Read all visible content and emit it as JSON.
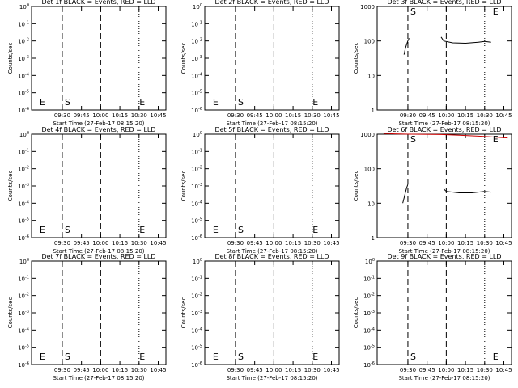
{
  "figure": {
    "background": "#ffffff",
    "line_color": "#000000",
    "lld_color": "#cc0000"
  },
  "chart_data": [
    {
      "type": "line",
      "panel": 1,
      "title": "Det 1f BLACK = Events, RED = LLD",
      "xlabel": "Start Time (27-Feb-17 08:15:20)",
      "ylabel": "Counts/sec",
      "x_ticks": [
        "09:30",
        "09:45",
        "10:00",
        "10:15",
        "10:30",
        "10:45"
      ],
      "y_ticks": [
        "10^0",
        "10^-1",
        "10^-2",
        "10^-3",
        "10^-4",
        "10^-5",
        "10^-6"
      ],
      "y_scale": "log",
      "ylim": [
        "10^-6",
        "10^0"
      ],
      "markers": [
        {
          "label": "E",
          "at": "09:11"
        },
        {
          "label": "S",
          "at": "09:30"
        },
        {
          "label": "E",
          "at": "10:29"
        }
      ],
      "series": []
    },
    {
      "type": "line",
      "panel": 2,
      "title": "Det 2f BLACK = Events, RED = LLD",
      "xlabel": "Start Time (27-Feb-17 08:15:20)",
      "ylabel": "Counts/sec",
      "x_ticks": [
        "09:30",
        "09:45",
        "10:00",
        "10:15",
        "10:30",
        "10:45"
      ],
      "y_ticks": [
        "10^0",
        "10^-1",
        "10^-2",
        "10^-3",
        "10^-4",
        "10^-5",
        "10^-6"
      ],
      "y_scale": "log",
      "ylim": [
        "10^-6",
        "10^0"
      ],
      "markers": [
        {
          "label": "E",
          "at": "09:11"
        },
        {
          "label": "S",
          "at": "09:30"
        },
        {
          "label": "E",
          "at": "10:29"
        }
      ],
      "series": []
    },
    {
      "type": "line",
      "panel": 3,
      "title": "Det 3f BLACK = Events, RED = LLD",
      "xlabel": "Start Time (27-Feb-17 08:15:20)",
      "ylabel": "Counts/sec",
      "x_ticks": [
        "09:30",
        "09:45",
        "10:00",
        "10:15",
        "10:30",
        "10:45"
      ],
      "y_ticks": [
        "1000",
        "100",
        "10",
        "1"
      ],
      "y_scale": "log",
      "ylim": [
        1,
        1000
      ],
      "markers": [
        {
          "label": "S",
          "at": "09:30"
        },
        {
          "label": "E",
          "at": "10:35"
        }
      ],
      "series": [
        {
          "color": "#000000",
          "x": [
            "09:27",
            "09:28",
            "09:29",
            "09:30",
            "09:31"
          ],
          "y": [
            40,
            60,
            80,
            100,
            120
          ]
        },
        {
          "color": "#000000",
          "x": [
            "09:56",
            "09:58",
            "10:05",
            "10:15",
            "10:25",
            "10:30",
            "10:35"
          ],
          "y": [
            130,
            100,
            88,
            86,
            92,
            97,
            92
          ]
        }
      ]
    },
    {
      "type": "line",
      "panel": 4,
      "title": "Det 4f BLACK = Events, RED = LLD",
      "xlabel": "Start Time (27-Feb-17 08:15:20)",
      "ylabel": "Counts/sec",
      "x_ticks": [
        "09:30",
        "09:45",
        "10:00",
        "10:15",
        "10:30",
        "10:45"
      ],
      "y_ticks": [
        "10^0",
        "10^-1",
        "10^-2",
        "10^-3",
        "10^-4",
        "10^-5",
        "10^-6"
      ],
      "y_scale": "log",
      "ylim": [
        "10^-6",
        "10^0"
      ],
      "markers": [
        {
          "label": "E",
          "at": "09:11"
        },
        {
          "label": "S",
          "at": "09:30"
        },
        {
          "label": "E",
          "at": "10:29"
        }
      ],
      "series": []
    },
    {
      "type": "line",
      "panel": 5,
      "title": "Det 5f BLACK = Events, RED = LLD",
      "xlabel": "Start Time (27-Feb-17 08:15:20)",
      "ylabel": "Counts/sec",
      "x_ticks": [
        "09:30",
        "09:45",
        "10:00",
        "10:15",
        "10:30",
        "10:45"
      ],
      "y_ticks": [
        "10^0",
        "10^-1",
        "10^-2",
        "10^-3",
        "10^-4",
        "10^-5",
        "10^-6"
      ],
      "y_scale": "log",
      "ylim": [
        "10^-6",
        "10^0"
      ],
      "markers": [
        {
          "label": "E",
          "at": "09:11"
        },
        {
          "label": "S",
          "at": "09:30"
        },
        {
          "label": "E",
          "at": "10:29"
        }
      ],
      "series": []
    },
    {
      "type": "line",
      "panel": 6,
      "title": "Det 6f BLACK = Events, RED = LLD",
      "xlabel": "Start Time (27-Feb-17 08:15:20)",
      "ylabel": "Counts/sec",
      "x_ticks": [
        "09:30",
        "09:45",
        "10:00",
        "10:15",
        "10:30",
        "10:45"
      ],
      "y_ticks": [
        "1000",
        "100",
        "10",
        "1"
      ],
      "y_scale": "log",
      "ylim": [
        1,
        1000
      ],
      "markers": [
        {
          "label": "S",
          "at": "09:30"
        },
        {
          "label": "E",
          "at": "10:35"
        }
      ],
      "series": [
        {
          "color": "#cc0000",
          "x": [
            "09:11",
            "09:20",
            "09:30",
            "09:56",
            "10:10",
            "10:25",
            "10:35",
            "10:48"
          ],
          "y": [
            1050,
            1020,
            1000,
            980,
            930,
            880,
            840,
            780
          ]
        },
        {
          "color": "#000000",
          "x": [
            "09:26",
            "09:27",
            "09:28",
            "09:29",
            "09:30"
          ],
          "y": [
            10,
            14,
            20,
            28,
            35
          ]
        },
        {
          "color": "#000000",
          "x": [
            "09:58",
            "10:00",
            "10:10",
            "10:20",
            "10:30",
            "10:35"
          ],
          "y": [
            26,
            22,
            20,
            20,
            22,
            21
          ]
        }
      ]
    },
    {
      "type": "line",
      "panel": 7,
      "title": "Det 7f BLACK = Events, RED = LLD",
      "xlabel": "Start Time (27-Feb-17 08:15:20)",
      "ylabel": "Counts/sec",
      "x_ticks": [
        "09:30",
        "09:45",
        "10:00",
        "10:15",
        "10:30",
        "10:45"
      ],
      "y_ticks": [
        "10^0",
        "10^-1",
        "10^-2",
        "10^-3",
        "10^-4",
        "10^-5",
        "10^-6"
      ],
      "y_scale": "log",
      "ylim": [
        "10^-6",
        "10^0"
      ],
      "markers": [
        {
          "label": "E",
          "at": "09:11"
        },
        {
          "label": "S",
          "at": "09:30"
        },
        {
          "label": "E",
          "at": "10:29"
        }
      ],
      "series": []
    },
    {
      "type": "line",
      "panel": 8,
      "title": "Det 8f BLACK = Events, RED = LLD",
      "xlabel": "Start Time (27-Feb-17 08:15:20)",
      "ylabel": "Counts/sec",
      "x_ticks": [
        "09:30",
        "09:45",
        "10:00",
        "10:15",
        "10:30",
        "10:45"
      ],
      "y_ticks": [
        "10^0",
        "10^-1",
        "10^-2",
        "10^-3",
        "10^-4",
        "10^-5",
        "10^-6"
      ],
      "y_scale": "log",
      "ylim": [
        "10^-6",
        "10^0"
      ],
      "markers": [
        {
          "label": "E",
          "at": "09:11"
        },
        {
          "label": "S",
          "at": "09:30"
        },
        {
          "label": "E",
          "at": "10:29"
        }
      ],
      "series": []
    },
    {
      "type": "line",
      "panel": 9,
      "title": "Det 9f BLACK = Events, RED = LLD",
      "xlabel": "Start Time (27-Feb-17 08:15:20)",
      "ylabel": "Counts/sec",
      "x_ticks": [
        "09:30",
        "09:45",
        "10:00",
        "10:15",
        "10:30",
        "10:45"
      ],
      "y_ticks": [
        "10^0",
        "10^-1",
        "10^-2",
        "10^-3",
        "10^-4",
        "10^-5",
        "10^-6"
      ],
      "y_scale": "log",
      "ylim": [
        "10^-6",
        "10^0"
      ],
      "markers": [
        {
          "label": "S",
          "at": "09:30"
        },
        {
          "label": "E",
          "at": "10:35"
        }
      ],
      "series": []
    }
  ]
}
